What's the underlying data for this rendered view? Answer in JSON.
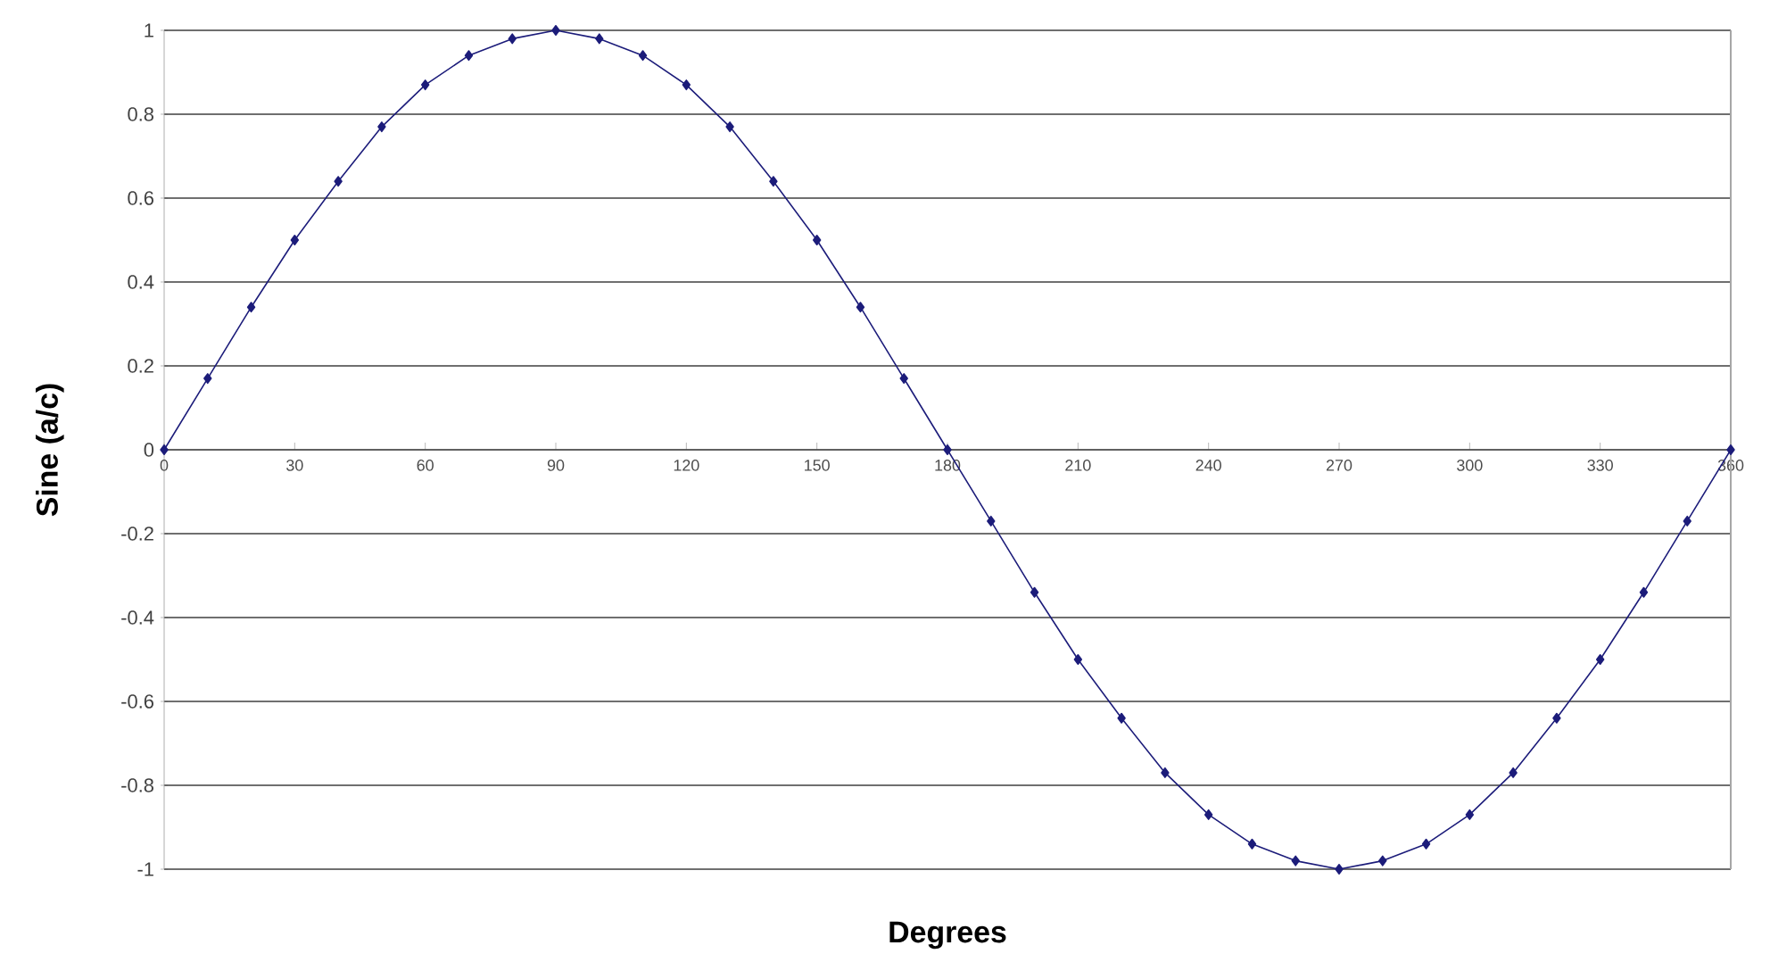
{
  "chart_data": {
    "type": "line",
    "xlabel": "Degrees",
    "ylabel": "Sine (a/c)",
    "x": [
      0,
      10,
      20,
      30,
      40,
      50,
      60,
      70,
      80,
      90,
      100,
      110,
      120,
      130,
      140,
      150,
      160,
      170,
      180,
      190,
      200,
      210,
      220,
      230,
      240,
      250,
      260,
      270,
      280,
      290,
      300,
      310,
      320,
      330,
      340,
      350,
      360
    ],
    "values": [
      0,
      0.17,
      0.34,
      0.5,
      0.64,
      0.77,
      0.87,
      0.94,
      0.98,
      1,
      0.98,
      0.94,
      0.87,
      0.77,
      0.64,
      0.5,
      0.34,
      0.17,
      0,
      -0.17,
      -0.34,
      -0.5,
      -0.64,
      -0.77,
      -0.87,
      -0.94,
      -0.98,
      -1,
      -0.98,
      -0.94,
      -0.87,
      -0.77,
      -0.64,
      -0.5,
      -0.34,
      -0.17,
      0
    ],
    "color": "#1c1c7a",
    "marker": "diamond",
    "grid": "y",
    "xlim": [
      0,
      360
    ],
    "ylim": [
      -1,
      1
    ],
    "xticks": [
      0,
      30,
      60,
      90,
      120,
      150,
      180,
      210,
      240,
      270,
      300,
      330,
      360
    ],
    "yticks": [
      -1,
      -0.8,
      -0.6,
      -0.4,
      -0.2,
      0,
      0.2,
      0.4,
      0.6,
      0.8,
      1
    ]
  }
}
